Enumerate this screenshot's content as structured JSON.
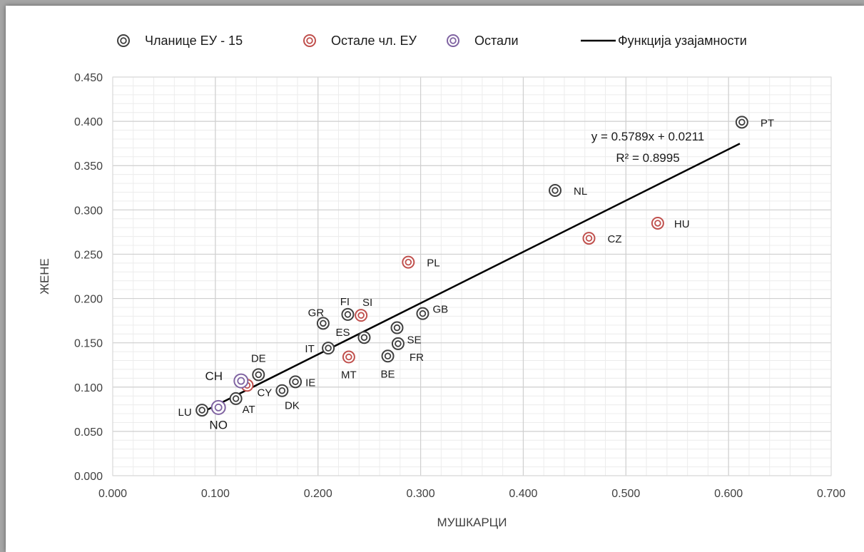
{
  "chart_data": {
    "type": "scatter",
    "xlabel": "МУШКАРЦИ",
    "ylabel": "ЖЕНЕ",
    "xlim": [
      0,
      0.7
    ],
    "ylim": [
      0,
      0.45
    ],
    "x_ticks": [
      "0.000",
      "0.100",
      "0.200",
      "0.300",
      "0.400",
      "0.500",
      "0.600",
      "0.700"
    ],
    "y_ticks": [
      "0.000",
      "0.050",
      "0.100",
      "0.150",
      "0.200",
      "0.250",
      "0.300",
      "0.350",
      "0.400",
      "0.450"
    ],
    "grid": true,
    "legend_position": "top",
    "series": [
      {
        "name": "Чланице ЕУ - 15",
        "color": "#404040",
        "points": [
          {
            "label": "PT",
            "x": 0.613,
            "y": 0.399
          },
          {
            "label": "NL",
            "x": 0.431,
            "y": 0.322
          },
          {
            "label": "GB",
            "x": 0.302,
            "y": 0.183
          },
          {
            "label": "FI",
            "x": 0.229,
            "y": 0.182
          },
          {
            "label": "GR",
            "x": 0.205,
            "y": 0.172
          },
          {
            "label": "SE",
            "x": 0.277,
            "y": 0.167
          },
          {
            "label": "ES",
            "x": 0.245,
            "y": 0.156
          },
          {
            "label": "FR",
            "x": 0.278,
            "y": 0.149
          },
          {
            "label": "IT",
            "x": 0.21,
            "y": 0.144
          },
          {
            "label": "BE",
            "x": 0.268,
            "y": 0.135
          },
          {
            "label": "DE",
            "x": 0.142,
            "y": 0.114
          },
          {
            "label": "IE",
            "x": 0.178,
            "y": 0.106
          },
          {
            "label": "DK",
            "x": 0.165,
            "y": 0.096
          },
          {
            "label": "AT",
            "x": 0.12,
            "y": 0.087
          },
          {
            "label": "LU",
            "x": 0.087,
            "y": 0.074
          }
        ]
      },
      {
        "name": "Остале чл. ЕУ",
        "color": "#c0504d",
        "points": [
          {
            "label": "HU",
            "x": 0.531,
            "y": 0.285
          },
          {
            "label": "CZ",
            "x": 0.464,
            "y": 0.268
          },
          {
            "label": "PL",
            "x": 0.288,
            "y": 0.241
          },
          {
            "label": "SI",
            "x": 0.242,
            "y": 0.181
          },
          {
            "label": "MT",
            "x": 0.23,
            "y": 0.134
          },
          {
            "label": "CY",
            "x": 0.131,
            "y": 0.102
          }
        ]
      },
      {
        "name": "Остали",
        "color": "#8064a2",
        "points": [
          {
            "label": "CH",
            "x": 0.125,
            "y": 0.107
          },
          {
            "label": "NO",
            "x": 0.103,
            "y": 0.077
          }
        ]
      }
    ],
    "trendline": {
      "name": "Функција узајамности",
      "slope": 0.5789,
      "intercept": 0.0211,
      "x_range": [
        0.087,
        0.611
      ],
      "equation": "y = 0.5789x + 0.0211",
      "r_squared": "R² = 0.8995",
      "color": "#000000"
    }
  }
}
